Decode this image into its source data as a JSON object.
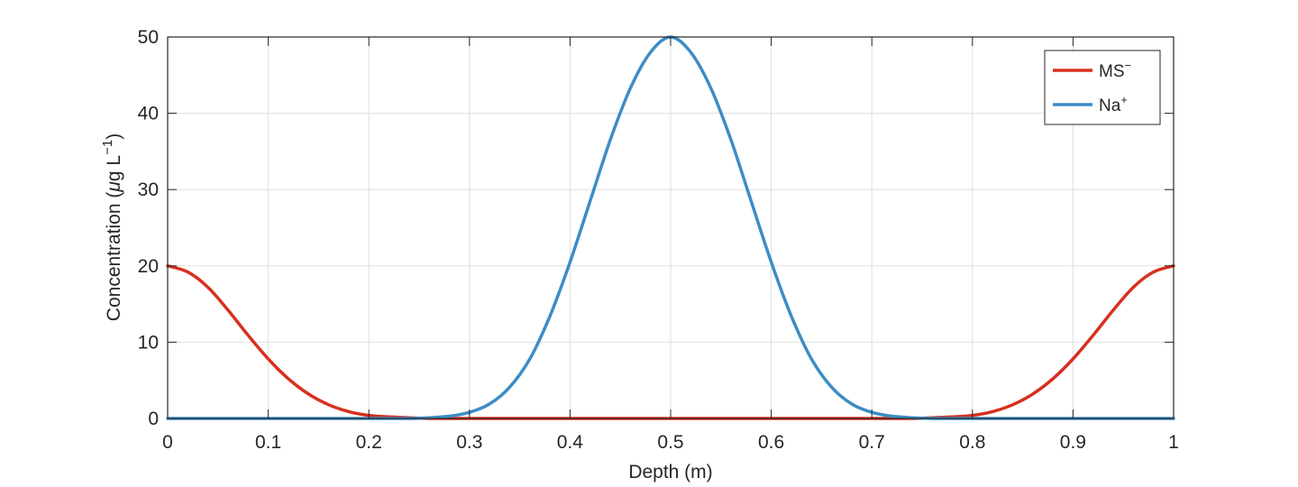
{
  "chart_data": {
    "type": "line",
    "xlabel": "Depth (m)",
    "ylabel": {
      "prefix": "Concentration (",
      "mu": "μ",
      "unit": "g L",
      "exp": "−1",
      "suffix": ")"
    },
    "xlim": [
      0,
      1
    ],
    "ylim": [
      0,
      50
    ],
    "xticks": [
      0,
      0.1,
      0.2,
      0.3,
      0.4,
      0.5,
      0.6,
      0.7,
      0.8,
      0.9,
      1
    ],
    "xtick_labels": [
      "0",
      "0.1",
      "0.2",
      "0.3",
      "0.4",
      "0.5",
      "0.6",
      "0.7",
      "0.8",
      "0.9",
      "1"
    ],
    "yticks": [
      0,
      10,
      20,
      30,
      40,
      50
    ],
    "ytick_labels": [
      "0",
      "10",
      "20",
      "30",
      "40",
      "50"
    ],
    "grid": true,
    "legend_position": "top-right",
    "series": [
      {
        "name": "MS",
        "name_sup": "−",
        "color": "#d7301f",
        "x": [
          0,
          0.02,
          0.04,
          0.06,
          0.08,
          0.1,
          0.12,
          0.14,
          0.16,
          0.18,
          0.2,
          0.22,
          0.24,
          0.26,
          0.28,
          0.3,
          0.35,
          0.4,
          0.45,
          0.5,
          0.55,
          0.6,
          0.65,
          0.7,
          0.72,
          0.74,
          0.76,
          0.78,
          0.8,
          0.82,
          0.84,
          0.86,
          0.88,
          0.9,
          0.92,
          0.94,
          0.96,
          0.98,
          1
        ],
        "y": [
          20,
          19.2,
          17.2,
          14.2,
          10.9,
          7.8,
          5.2,
          3.2,
          1.8,
          0.9,
          0.4,
          0.2,
          0.1,
          0,
          0,
          0,
          0,
          0,
          0,
          0,
          0,
          0,
          0,
          0,
          0,
          0,
          0.1,
          0.2,
          0.4,
          0.9,
          1.8,
          3.2,
          5.2,
          7.8,
          10.9,
          14.2,
          17.2,
          19.2,
          20
        ]
      },
      {
        "name": "Na",
        "name_sup": "+",
        "color": "#3c8dc5",
        "x": [
          0,
          0.2,
          0.22,
          0.24,
          0.26,
          0.28,
          0.3,
          0.32,
          0.34,
          0.36,
          0.38,
          0.4,
          0.42,
          0.44,
          0.46,
          0.48,
          0.5,
          0.52,
          0.54,
          0.56,
          0.58,
          0.6,
          0.62,
          0.64,
          0.66,
          0.68,
          0.7,
          0.72,
          0.74,
          0.76,
          0.78,
          0.8,
          1
        ],
        "y": [
          0,
          0,
          0,
          0,
          0.1,
          0.3,
          0.8,
          1.9,
          4.1,
          7.8,
          13.4,
          20.5,
          28.5,
          36.5,
          43.3,
          48,
          50,
          48,
          43.3,
          36.5,
          28.5,
          20.5,
          13.4,
          7.8,
          4.1,
          1.9,
          0.8,
          0.3,
          0.1,
          0,
          0,
          0,
          0
        ]
      }
    ]
  }
}
